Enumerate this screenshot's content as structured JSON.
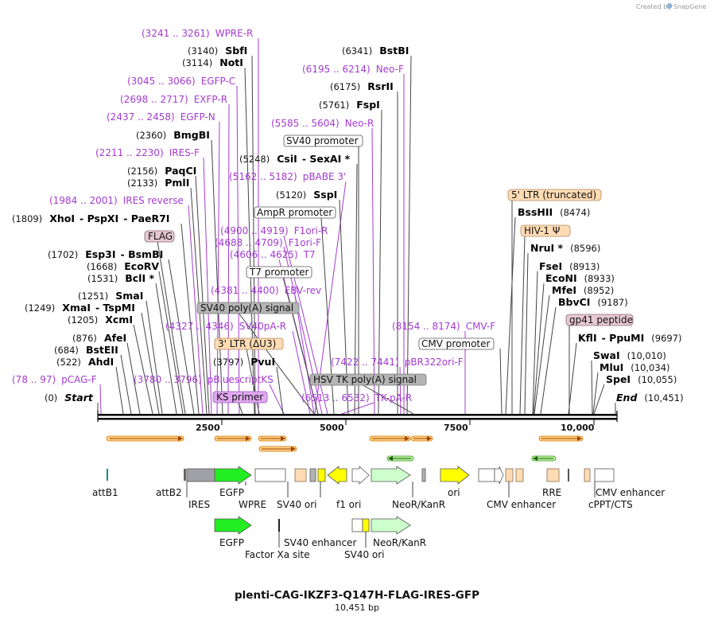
{
  "credit": "Created by",
  "credit_brand": "SnapGene",
  "title": "plenti-CAG-IKZF3-Q147H-FLAG-IRES-GFP",
  "subtitle": "10,451 bp",
  "start_label": "Start",
  "start_pos": "(0)",
  "end_label": "End",
  "end_pos": "(10,451)",
  "ruler_ticks": [
    "2500",
    "5000",
    "7500",
    "10,000"
  ],
  "enzymes": {
    "sbfI": {
      "pos": "(3140)",
      "name": "SbfI"
    },
    "notI": {
      "pos": "(3114)",
      "name": "NotI"
    },
    "bmgBI": {
      "pos": "(2360)",
      "name": "BmgBI"
    },
    "paqCI": {
      "pos": "(2156)",
      "name": "PaqCI"
    },
    "pmlI": {
      "pos": "(2133)",
      "name": "PmlI"
    },
    "xhoI": {
      "pos": "(1809)",
      "name": "XhoI",
      "n2": "PspXI",
      "n3": "PaeR7I"
    },
    "esp3I": {
      "pos": "(1702)",
      "name": "Esp3I",
      "n2": "BsmBI"
    },
    "ecoRV": {
      "pos": "(1668)",
      "name": "EcoRV"
    },
    "bclI": {
      "pos": "(1531)",
      "name": "BclI *"
    },
    "smaI": {
      "pos": "(1251)",
      "name": "SmaI"
    },
    "xmaI": {
      "pos": "(1249)",
      "name": "XmaI",
      "n2": "TspMI"
    },
    "xcmI": {
      "pos": "(1205)",
      "name": "XcmI"
    },
    "afeI": {
      "pos": "(876)",
      "name": "AfeI"
    },
    "bstEII": {
      "pos": "(684)",
      "name": "BstEII"
    },
    "ahdI": {
      "pos": "(522)",
      "name": "AhdI"
    },
    "bstBI": {
      "pos": "(6341)",
      "name": "BstBI"
    },
    "rsrII": {
      "pos": "(6175)",
      "name": "RsrII"
    },
    "fspI": {
      "pos": "(5761)",
      "name": "FspI"
    },
    "csiI": {
      "pos": "(5248)",
      "name": "CsiI",
      "n2": "SexAI *"
    },
    "sspI": {
      "pos": "(5120)",
      "name": "SspI"
    },
    "pvuI": {
      "pos": "(3797)",
      "name": "PvuI"
    },
    "bssHII": {
      "pos": "(8474)",
      "name": "BssHII"
    },
    "nruI": {
      "pos": "(8596)",
      "name": "NruI *"
    },
    "fseI": {
      "pos": "(8913)",
      "name": "FseI"
    },
    "ecoNI": {
      "pos": "(8933)",
      "name": "EcoNI"
    },
    "mfeI": {
      "pos": "(8952)",
      "name": "MfeI"
    },
    "bbvCI": {
      "pos": "(9187)",
      "name": "BbvCI"
    },
    "kflI": {
      "pos": "(9697)",
      "name": "KflI",
      "n2": "PpuMI"
    },
    "swaI": {
      "pos": "(10,010)",
      "name": "SwaI"
    },
    "mluI": {
      "pos": "(10,034)",
      "name": "MluI"
    },
    "speI": {
      "pos": "(10,055)",
      "name": "SpeI"
    }
  },
  "primers": {
    "wpreR": {
      "pos": "(3241 .. 3261)",
      "name": "WPRE-R"
    },
    "egfpC": {
      "pos": "(3045 .. 3066)",
      "name": "EGFP-C"
    },
    "exfpR": {
      "pos": "(2698 .. 2717)",
      "name": "EXFP-R"
    },
    "egfpN": {
      "pos": "(2437 .. 2458)",
      "name": "EGFP-N"
    },
    "iresF": {
      "pos": "(2211 .. 2230)",
      "name": "IRES-F"
    },
    "iresRev": {
      "pos": "(1984 .. 2001)",
      "name": "IRES reverse"
    },
    "pcagF": {
      "pos": "(78 .. 97)",
      "name": "pCAG-F"
    },
    "neoF": {
      "pos": "(6195 .. 6214)",
      "name": "Neo-F"
    },
    "neoR": {
      "pos": "(5585 .. 5604)",
      "name": "Neo-R"
    },
    "pbabe3": {
      "pos": "(5162 .. 5182)",
      "name": "pBABE 3'"
    },
    "f1oriR": {
      "pos": "(4900 .. 4919)",
      "name": "F1ori-R"
    },
    "f1oriF": {
      "pos": "(4688 .. 4709)",
      "name": "F1ori-F"
    },
    "t7": {
      "pos": "(4606 .. 4625)",
      "name": "T7"
    },
    "ebvRev": {
      "pos": "(4381 .. 4400)",
      "name": "EBV-rev"
    },
    "sv40paR": {
      "pos": "(4327 .. 4346)",
      "name": "SV40pA-R"
    },
    "pbluescriptKS": {
      "pos": "(3780 .. 3796)",
      "name": "pBluescriptKS"
    },
    "tkpaR": {
      "pos": "(6513 .. 6532)",
      "name": "TK-pA-R"
    },
    "pbr322": {
      "pos": "(7422 .. 7441)",
      "name": "pBR322ori-F"
    },
    "cmvF": {
      "pos": "(8154 .. 8174)",
      "name": "CMV-F"
    }
  },
  "boxes": {
    "flag": "FLAG",
    "sv40promoter": "SV40 promoter",
    "amprPromoter": "AmpR promoter",
    "t7promoter": "T7 promoter",
    "sv40polyA": "SV40 poly(A) signal",
    "ltr3": "3' LTR (ΔU3)",
    "ksPrimer": "KS primer",
    "hsvTk": "HSV TK poly(A) signal",
    "cmvPromoter": "CMV promoter",
    "ltr5": "5' LTR (truncated)",
    "hiv1": "HIV-1 Ψ",
    "gp41": "gp41 peptide"
  },
  "features_row1": [
    "attB1",
    "attB2",
    "IRES",
    "EGFP",
    "WPRE",
    "SV40 ori",
    "f1 ori",
    "NeoR/KanR",
    "ori",
    "CMV enhancer",
    "RRE",
    "cPPT/CTS",
    "CMV enhancer"
  ],
  "features_row2": [
    "EGFP",
    "Factor Xa site",
    "SV40 enhancer",
    "SV40 ori",
    "NeoR/KanR"
  ],
  "colors": {
    "enzyme_line": "#444444",
    "primer_line": "#a43bd1",
    "egfp": "#22ee22",
    "neo": "#ccffcc",
    "ori": "#ffff00",
    "ltr": "#ffdcb4",
    "flag": "#e6c8d2",
    "ks": "#e0a8f0",
    "grey": "#b4b4b4"
  }
}
